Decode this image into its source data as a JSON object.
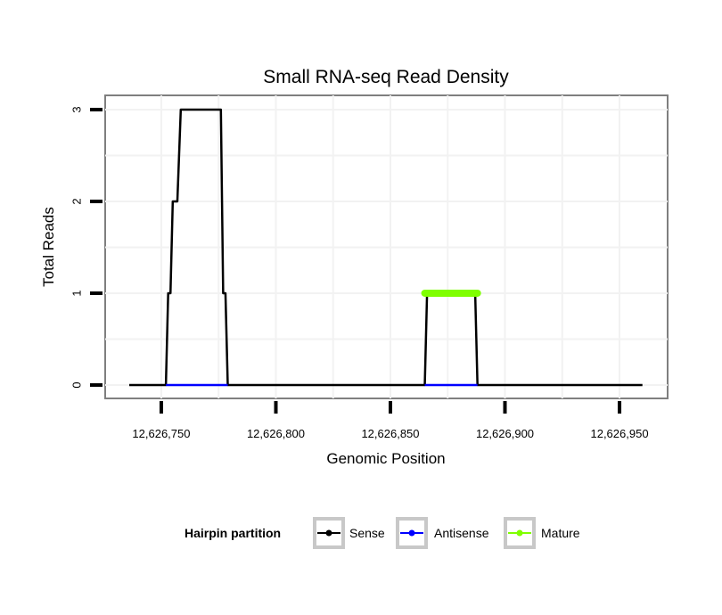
{
  "chart_data": {
    "type": "line",
    "title": "Small RNA-seq Read Density",
    "xlabel": "Genomic Position",
    "ylabel": "Total Reads",
    "xlim": [
      12626725.5,
      12626971
    ],
    "ylim": [
      -0.146,
      3.155
    ],
    "x_ticks": [
      12626750,
      12626800,
      12626850,
      12626900,
      12626950
    ],
    "x_tick_labels": [
      "12,626,750",
      "12,626,800",
      "12,626,850",
      "12,626,900",
      "12,626,950"
    ],
    "y_ticks": [
      0,
      1,
      2,
      3
    ],
    "y_tick_labels": [
      "0",
      "1",
      "2",
      "3"
    ],
    "grid": true,
    "legend": {
      "title": "Hairpin partition",
      "placement": "bottom"
    },
    "series": [
      {
        "name": "Sense",
        "color": "#000000",
        "x": [
          12626736,
          12626752,
          12626753,
          12626754,
          12626755,
          12626757,
          12626758.5,
          12626776,
          12626777,
          12626778,
          12626779,
          12626865,
          12626866,
          12626887,
          12626888,
          12626960
        ],
        "y": [
          0,
          0,
          1,
          1,
          2,
          2,
          3,
          3,
          1,
          1,
          0,
          0,
          1,
          1,
          0,
          0
        ]
      },
      {
        "name": "Antisense",
        "color": "#0000ff",
        "segments": [
          {
            "x": [
              12626752,
              12626779
            ],
            "y": [
              0,
              0
            ]
          },
          {
            "x": [
              12626865,
              12626888
            ],
            "y": [
              0,
              0
            ]
          }
        ]
      },
      {
        "name": "Mature",
        "color": "#7fff00",
        "x": [
          12626865,
          12626888
        ],
        "y": [
          1,
          1
        ]
      }
    ]
  }
}
